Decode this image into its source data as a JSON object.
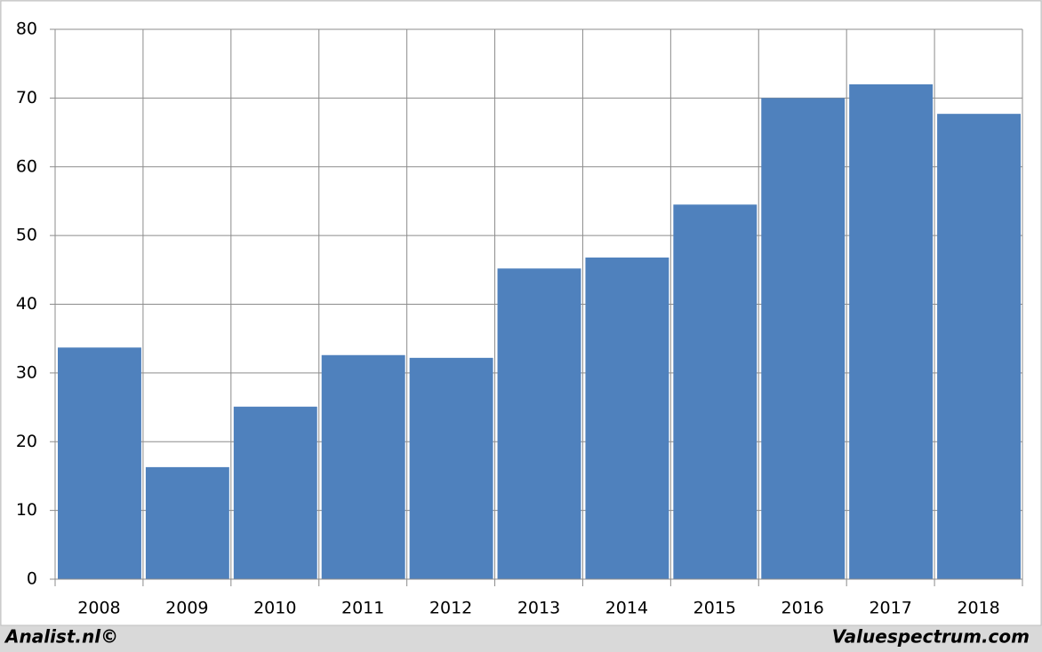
{
  "chart_data": {
    "type": "bar",
    "categories": [
      "2008",
      "2009",
      "2010",
      "2011",
      "2012",
      "2013",
      "2014",
      "2015",
      "2016",
      "2017",
      "2018"
    ],
    "values": [
      33.7,
      16.3,
      25.1,
      32.6,
      32.2,
      45.2,
      46.8,
      54.5,
      70.0,
      72.0,
      67.7
    ],
    "color": "#4f81bd",
    "ylim": [
      0,
      80
    ],
    "yticks": [
      0,
      10,
      20,
      30,
      40,
      50,
      60,
      70,
      80
    ],
    "grid": true
  },
  "footer": {
    "left": "Analist.nl©",
    "right": "Valuespectrum.com"
  }
}
